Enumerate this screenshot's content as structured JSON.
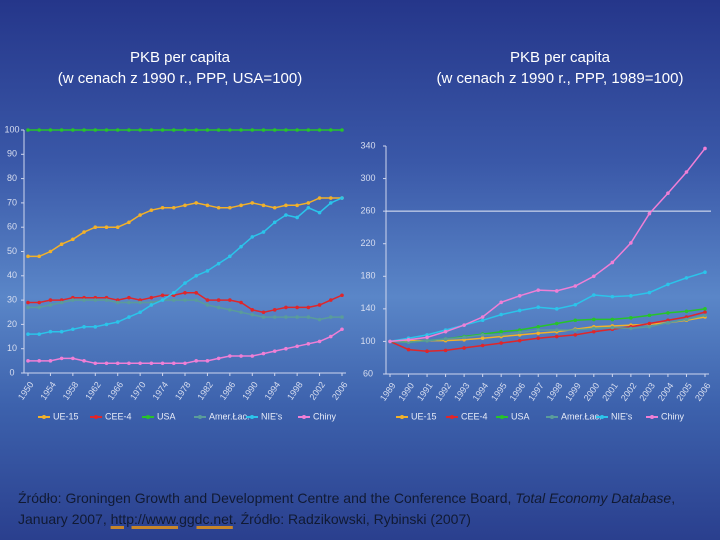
{
  "chart_data": [
    {
      "type": "line",
      "title": "PKB per capita",
      "subtitle": "(w cenach z 1990 r., PPP, USA=100)",
      "x": [
        1950,
        1952,
        1954,
        1956,
        1958,
        1960,
        1962,
        1964,
        1966,
        1968,
        1970,
        1972,
        1974,
        1976,
        1978,
        1980,
        1982,
        1984,
        1986,
        1988,
        1990,
        1992,
        1994,
        1996,
        1998,
        2000,
        2002,
        2004,
        2006
      ],
      "xlim": [
        1950,
        2006
      ],
      "xticks": [
        1950,
        1954,
        1958,
        1962,
        1966,
        1970,
        1974,
        1978,
        1982,
        1986,
        1990,
        1994,
        1998,
        2002,
        2006
      ],
      "ylim": [
        0,
        100
      ],
      "yticks": [
        0,
        10,
        20,
        30,
        40,
        50,
        60,
        70,
        80,
        90,
        100
      ],
      "series": [
        {
          "name": "UE-15",
          "color": "#f2b12a",
          "values": [
            48,
            48,
            50,
            53,
            55,
            58,
            60,
            60,
            60,
            62,
            65,
            67,
            68,
            68,
            69,
            70,
            69,
            68,
            68,
            69,
            70,
            69,
            68,
            69,
            69,
            70,
            72,
            72,
            72
          ]
        },
        {
          "name": "CEE-4",
          "color": "#e0262a",
          "values": [
            29,
            29,
            30,
            30,
            31,
            31,
            31,
            31,
            30,
            31,
            30,
            31,
            32,
            32,
            33,
            33,
            30,
            30,
            30,
            29,
            26,
            25,
            26,
            27,
            27,
            27,
            28,
            30,
            32
          ]
        },
        {
          "name": "USA",
          "color": "#27c42a",
          "values": [
            100,
            100,
            100,
            100,
            100,
            100,
            100,
            100,
            100,
            100,
            100,
            100,
            100,
            100,
            100,
            100,
            100,
            100,
            100,
            100,
            100,
            100,
            100,
            100,
            100,
            100,
            100,
            100,
            100
          ]
        },
        {
          "name": "Amer.Łac.",
          "color": "#5a9c9a",
          "values": [
            27,
            27,
            28,
            29,
            30,
            30,
            30,
            30,
            29,
            29,
            29,
            29,
            30,
            30,
            30,
            30,
            28,
            27,
            26,
            25,
            24,
            23,
            23,
            23,
            23,
            23,
            22,
            23,
            23
          ]
        },
        {
          "name": "NIE's",
          "color": "#2bc4ea",
          "values": [
            16,
            16,
            17,
            17,
            18,
            19,
            19,
            20,
            21,
            23,
            25,
            28,
            30,
            33,
            37,
            40,
            42,
            45,
            48,
            52,
            56,
            58,
            62,
            65,
            64,
            68,
            66,
            70,
            72
          ]
        },
        {
          "name": "Chiny",
          "color": "#f07fd6",
          "values": [
            5,
            5,
            5,
            6,
            6,
            5,
            4,
            4,
            4,
            4,
            4,
            4,
            4,
            4,
            4,
            5,
            5,
            6,
            7,
            7,
            7,
            8,
            9,
            10,
            11,
            12,
            13,
            15,
            18
          ]
        }
      ]
    },
    {
      "type": "line",
      "title": "PKB per capita",
      "subtitle": "(w cenach z 1990 r., PPP, 1989=100)",
      "x": [
        1989,
        1990,
        1991,
        1992,
        1993,
        1994,
        1995,
        1996,
        1997,
        1998,
        1999,
        2000,
        2001,
        2002,
        2003,
        2004,
        2005,
        2006
      ],
      "xlim": [
        1989,
        2006
      ],
      "xticks": [
        1989,
        1990,
        1991,
        1992,
        1993,
        1994,
        1995,
        1996,
        1997,
        1998,
        1999,
        2000,
        2001,
        2002,
        2003,
        2004,
        2005,
        2006
      ],
      "ylim": [
        60,
        340
      ],
      "yticks": [
        60,
        100,
        140,
        180,
        220,
        260,
        300,
        340
      ],
      "ref_line": 260,
      "series": [
        {
          "name": "UE-15",
          "color": "#f2b12a",
          "values": [
            100,
            101,
            101,
            101,
            102,
            104,
            106,
            108,
            110,
            112,
            115,
            118,
            119,
            120,
            121,
            123,
            126,
            130
          ]
        },
        {
          "name": "CEE-4",
          "color": "#e0262a",
          "values": [
            100,
            90,
            88,
            89,
            92,
            95,
            98,
            101,
            104,
            106,
            108,
            112,
            115,
            118,
            122,
            126,
            130,
            136
          ]
        },
        {
          "name": "USA",
          "color": "#27c42a",
          "values": [
            100,
            99,
            101,
            103,
            106,
            109,
            112,
            114,
            118,
            122,
            126,
            127,
            127,
            129,
            132,
            135,
            137,
            140
          ]
        },
        {
          "name": "Amer.Łac.",
          "color": "#5a9c9a",
          "values": [
            100,
            99,
            101,
            103,
            105,
            108,
            108,
            111,
            114,
            114,
            114,
            116,
            117,
            116,
            118,
            123,
            127,
            132
          ]
        },
        {
          "name": "NIE's",
          "color": "#2bc4ea",
          "values": [
            100,
            104,
            108,
            114,
            120,
            126,
            133,
            138,
            142,
            140,
            145,
            157,
            155,
            156,
            160,
            170,
            178,
            185
          ]
        },
        {
          "name": "Chiny",
          "color": "#f07fd6",
          "values": [
            100,
            102,
            105,
            112,
            120,
            130,
            148,
            156,
            163,
            162,
            168,
            180,
            197,
            221,
            257,
            282,
            308,
            337
          ]
        }
      ]
    }
  ],
  "source": {
    "part1": "Źródło: Groningen Growth and Development Centre and the Conference Board, ",
    "italic": "Total Economy Database",
    "part2": ", January 2007, ",
    "link": "http://www.ggdc.net",
    "part3": ". Źródło: Radzikowski, Rybinski (2007)"
  }
}
